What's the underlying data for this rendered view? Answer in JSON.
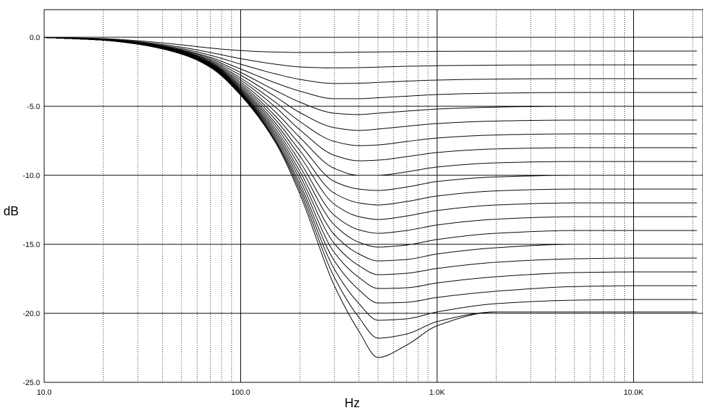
{
  "chart_data": {
    "type": "line",
    "xlabel": "Hz",
    "ylabel": "dB",
    "xscale": "log",
    "xlim": [
      10,
      21000
    ],
    "ylim": [
      -25,
      2
    ],
    "grid": true,
    "legend": "none",
    "line_color": "#000000",
    "grid_color": "#000000",
    "x_tick_labels": [
      {
        "value": 10,
        "label": "10.0"
      },
      {
        "value": 100,
        "label": "100.0"
      },
      {
        "value": 1000,
        "label": "1.0K"
      },
      {
        "value": 10000,
        "label": "10.0K"
      }
    ],
    "y_tick_labels": [
      {
        "value": 0,
        "label": "0.0"
      },
      {
        "value": -5,
        "label": "-5.0"
      },
      {
        "value": -10,
        "label": "-10.0"
      },
      {
        "value": -15,
        "label": "-15.0"
      },
      {
        "value": -20,
        "label": "-20.0"
      },
      {
        "value": -25,
        "label": "-25.0"
      }
    ],
    "x": [
      10,
      20,
      30,
      50,
      70,
      100,
      150,
      200,
      300,
      400,
      500,
      700,
      1000,
      2000,
      5000,
      10000,
      21000
    ],
    "series": [
      {
        "values": [
          -0.01,
          -0.1,
          -0.25,
          -0.55,
          -0.78,
          -0.96,
          -1.07,
          -1.1,
          -1.1,
          -1.08,
          -1.06,
          -1.04,
          -1.02,
          -1.01,
          -1.0,
          -1.0,
          -1.0
        ]
      },
      {
        "values": [
          -0.01,
          -0.13,
          -0.32,
          -0.72,
          -1.1,
          -1.55,
          -1.95,
          -2.15,
          -2.22,
          -2.2,
          -2.16,
          -2.1,
          -2.06,
          -2.02,
          -2.0,
          -2.0,
          -2.0
        ]
      },
      {
        "values": [
          -0.02,
          -0.15,
          -0.36,
          -0.82,
          -1.3,
          -1.95,
          -2.65,
          -3.05,
          -3.35,
          -3.33,
          -3.27,
          -3.18,
          -3.1,
          -3.03,
          -3.0,
          -3.0,
          -3.0
        ]
      },
      {
        "values": [
          -0.02,
          -0.16,
          -0.38,
          -0.9,
          -1.45,
          -2.3,
          -3.3,
          -3.9,
          -4.45,
          -4.45,
          -4.38,
          -4.27,
          -4.15,
          -4.05,
          -4.0,
          -4.0,
          -4.0
        ]
      },
      {
        "values": [
          -0.02,
          -0.17,
          -0.4,
          -0.95,
          -1.55,
          -2.55,
          -3.85,
          -4.7,
          -5.5,
          -5.6,
          -5.5,
          -5.35,
          -5.2,
          -5.06,
          -5.0,
          -5.0,
          -5.0
        ]
      },
      {
        "values": [
          -0.02,
          -0.18,
          -0.42,
          -1.0,
          -1.65,
          -2.75,
          -4.3,
          -5.45,
          -6.55,
          -6.75,
          -6.65,
          -6.45,
          -6.25,
          -6.07,
          -6.0,
          -6.0,
          -6.0
        ]
      },
      {
        "values": [
          -0.02,
          -0.18,
          -0.43,
          -1.03,
          -1.73,
          -2.95,
          -4.7,
          -6.1,
          -7.55,
          -7.85,
          -7.8,
          -7.55,
          -7.3,
          -7.08,
          -7.0,
          -7.0,
          -7.0
        ]
      },
      {
        "values": [
          -0.02,
          -0.19,
          -0.44,
          -1.06,
          -1.8,
          -3.1,
          -5.05,
          -6.7,
          -8.55,
          -8.95,
          -8.9,
          -8.65,
          -8.35,
          -8.09,
          -8.0,
          -8.0,
          -8.0
        ]
      },
      {
        "values": [
          -0.02,
          -0.19,
          -0.45,
          -1.08,
          -1.86,
          -3.25,
          -5.4,
          -7.25,
          -9.5,
          -10.0,
          -10.0,
          -9.75,
          -9.4,
          -9.1,
          -9.0,
          -9.0,
          -9.0
        ]
      },
      {
        "values": [
          -0.02,
          -0.19,
          -0.46,
          -1.1,
          -1.9,
          -3.38,
          -5.7,
          -7.75,
          -10.45,
          -11.0,
          -11.1,
          -10.85,
          -10.45,
          -10.12,
          -10.0,
          -10.0,
          -10.0
        ]
      },
      {
        "values": [
          -0.02,
          -0.2,
          -0.46,
          -1.12,
          -1.94,
          -3.5,
          -5.95,
          -8.2,
          -11.3,
          -12.0,
          -12.15,
          -11.9,
          -11.5,
          -11.13,
          -11.0,
          -11.0,
          -11.0
        ]
      },
      {
        "values": [
          -0.02,
          -0.2,
          -0.47,
          -1.13,
          -1.98,
          -3.6,
          -6.2,
          -8.6,
          -12.1,
          -13.0,
          -13.2,
          -12.95,
          -12.55,
          -12.15,
          -12.0,
          -12.0,
          -12.0
        ]
      },
      {
        "values": [
          -0.02,
          -0.2,
          -0.47,
          -1.14,
          -2.01,
          -3.7,
          -6.4,
          -9.0,
          -12.9,
          -13.95,
          -14.2,
          -14.0,
          -13.6,
          -13.18,
          -13.0,
          -13.0,
          -13.0
        ]
      },
      {
        "values": [
          -0.02,
          -0.2,
          -0.48,
          -1.15,
          -2.04,
          -3.78,
          -6.6,
          -9.35,
          -13.6,
          -14.85,
          -15.2,
          -15.05,
          -14.65,
          -14.2,
          -14.0,
          -14.0,
          -14.0
        ]
      },
      {
        "values": [
          -0.02,
          -0.21,
          -0.48,
          -1.16,
          -2.06,
          -3.86,
          -6.78,
          -9.7,
          -14.3,
          -15.7,
          -16.2,
          -16.1,
          -15.7,
          -15.25,
          -15.0,
          -15.0,
          -15.0
        ]
      },
      {
        "values": [
          -0.02,
          -0.21,
          -0.48,
          -1.17,
          -2.08,
          -3.93,
          -6.95,
          -10.0,
          -14.95,
          -16.55,
          -17.2,
          -17.1,
          -16.75,
          -16.3,
          -16.05,
          -16.0,
          -16.0
        ]
      },
      {
        "values": [
          -0.02,
          -0.21,
          -0.49,
          -1.18,
          -2.1,
          -4.0,
          -7.1,
          -10.3,
          -15.6,
          -17.4,
          -18.2,
          -18.15,
          -17.8,
          -17.35,
          -17.05,
          -17.0,
          -17.0
        ]
      },
      {
        "values": [
          -0.02,
          -0.21,
          -0.49,
          -1.19,
          -2.12,
          -4.05,
          -7.25,
          -10.6,
          -16.2,
          -18.3,
          -19.25,
          -19.2,
          -18.85,
          -18.4,
          -18.06,
          -18.0,
          -18.0
        ]
      },
      {
        "values": [
          -0.02,
          -0.21,
          -0.49,
          -1.2,
          -2.14,
          -4.1,
          -7.4,
          -10.85,
          -16.8,
          -19.3,
          -20.5,
          -20.4,
          -19.9,
          -19.3,
          -19.05,
          -19.0,
          -19.0
        ]
      },
      {
        "values": [
          -0.02,
          -0.21,
          -0.5,
          -1.21,
          -2.15,
          -4.15,
          -7.5,
          -11.1,
          -17.4,
          -20.3,
          -21.8,
          -21.5,
          -20.6,
          -19.9,
          -19.9,
          -19.9,
          -19.9
        ]
      },
      {
        "values": [
          -0.02,
          -0.21,
          -0.5,
          -1.22,
          -2.17,
          -4.2,
          -7.6,
          -11.35,
          -18.0,
          -21.3,
          -23.2,
          -22.3,
          -20.9,
          -19.9,
          -19.9,
          -19.9,
          -19.9
        ]
      }
    ]
  }
}
